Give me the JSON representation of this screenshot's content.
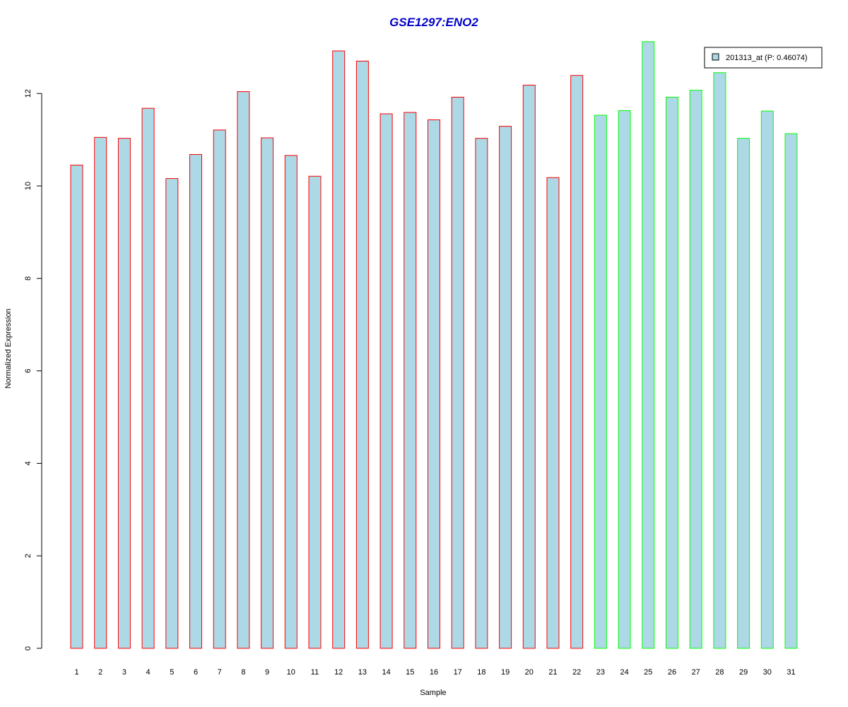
{
  "chart_data": {
    "type": "bar",
    "title": "GSE1297:ENO2",
    "title_color": "#0000CC",
    "xlabel": "Sample",
    "ylabel": "Normalized Expression",
    "ylim": [
      0,
      13
    ],
    "yticks": [
      0,
      2,
      4,
      6,
      8,
      10,
      12
    ],
    "grid": false,
    "legend_position": "top-right",
    "bar_fill": "#ADD8E6",
    "group_colors": {
      "group1": "#FF0000",
      "group2": "#00FF00"
    },
    "categories": [
      "1",
      "2",
      "3",
      "4",
      "5",
      "6",
      "7",
      "8",
      "9",
      "10",
      "11",
      "12",
      "13",
      "14",
      "15",
      "16",
      "17",
      "18",
      "19",
      "20",
      "21",
      "22",
      "23",
      "24",
      "25",
      "26",
      "27",
      "28",
      "29",
      "30",
      "31"
    ],
    "series": [
      {
        "name": "201313_at (P: 0.46074)",
        "values": [
          10.45,
          11.05,
          11.03,
          11.68,
          10.16,
          10.68,
          11.21,
          12.04,
          11.04,
          10.66,
          10.21,
          12.92,
          12.7,
          11.56,
          11.59,
          11.43,
          11.92,
          11.03,
          11.29,
          12.18,
          10.18,
          12.39,
          11.53,
          11.63,
          13.12,
          11.92,
          12.07,
          12.45,
          11.03,
          11.62,
          11.13
        ],
        "groups": [
          "group1",
          "group1",
          "group1",
          "group1",
          "group1",
          "group1",
          "group1",
          "group1",
          "group1",
          "group1",
          "group1",
          "group1",
          "group1",
          "group1",
          "group1",
          "group1",
          "group1",
          "group1",
          "group1",
          "group1",
          "group1",
          "group1",
          "group2",
          "group2",
          "group2",
          "group2",
          "group2",
          "group2",
          "group2",
          "group2",
          "group2"
        ]
      }
    ]
  }
}
